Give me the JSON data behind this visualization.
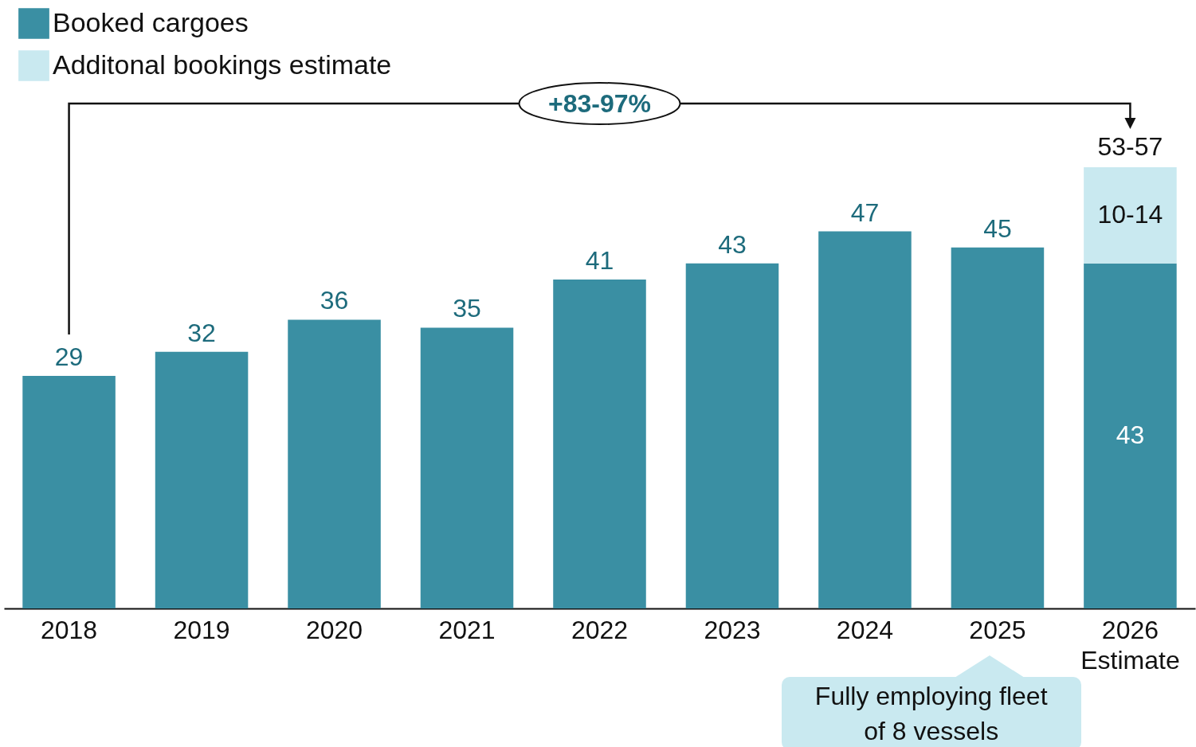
{
  "chart_data": {
    "type": "bar",
    "stacked": true,
    "legend": "top left",
    "categories": [
      "2018",
      "2019",
      "2020",
      "2021",
      "2022",
      "2023",
      "2024",
      "2025",
      "2026 Estimate"
    ],
    "series": [
      {
        "name": "Booked cargoes",
        "color": "#3a8fa3",
        "values": [
          29,
          32,
          36,
          35,
          41,
          43,
          47,
          45,
          43
        ],
        "value_labels": [
          "29",
          "32",
          "36",
          "35",
          "41",
          "43",
          "47",
          "45",
          "43"
        ]
      },
      {
        "name": "Additonal bookings estimate",
        "color": "#c9e9f0",
        "values": [
          null,
          null,
          null,
          null,
          null,
          null,
          null,
          null,
          12
        ],
        "value_labels": [
          null,
          null,
          null,
          null,
          null,
          null,
          null,
          null,
          "10-14"
        ]
      }
    ],
    "totals": [
      null,
      null,
      null,
      null,
      null,
      null,
      null,
      null,
      "53-57"
    ],
    "annotations": [
      "+83-97%",
      "Fully employing fleet of 8 vessels"
    ]
  }
}
